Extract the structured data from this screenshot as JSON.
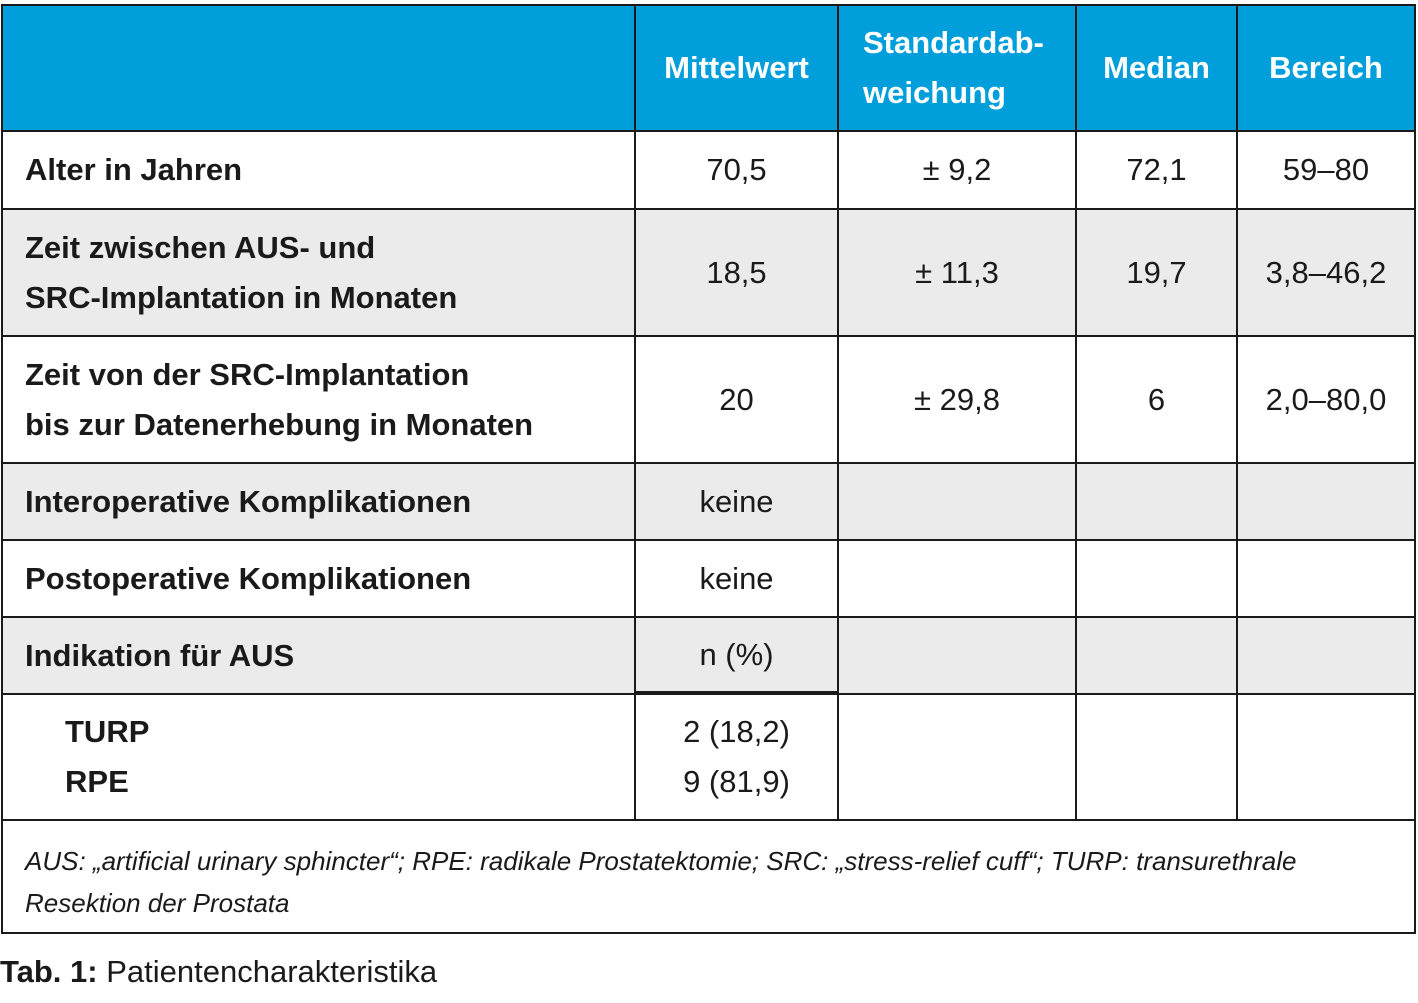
{
  "table": {
    "headers": [
      "",
      "Mittelwert",
      "Standardab-",
      "weichung",
      "Median",
      "Bereich"
    ],
    "header": {
      "col_mean": "Mittelwert",
      "col_sd_line1": "Standardab-",
      "col_sd_line2": "weichung",
      "col_median": "Median",
      "col_range": "Bereich"
    },
    "rows": [
      {
        "label_line1": "Alter in Jahren",
        "mean": "70,5",
        "sd": "± 9,2",
        "median": "72,1",
        "range": "59–80"
      },
      {
        "label_line1": "Zeit zwischen AUS- und",
        "label_line2": "SRC-Implantation in Monaten",
        "mean": "18,5",
        "sd": "± 11,3",
        "median": "19,7",
        "range": "3,8–46,2"
      },
      {
        "label_line1": "Zeit von der SRC-Implantation",
        "label_line2": "bis zur Datenerhebung in Monaten",
        "mean": "20",
        "sd": "± 29,8",
        "median": "6",
        "range": "2,0–80,0"
      },
      {
        "label_line1": "Interoperative Komplikationen",
        "mean": "keine"
      },
      {
        "label_line1": "Postoperative Komplikationen",
        "mean": "keine"
      },
      {
        "label_line1": "Indikation für AUS",
        "mean": "n (%)"
      }
    ],
    "indications": [
      {
        "label": "TURP",
        "value": "2 (18,2)"
      },
      {
        "label": "RPE",
        "value": "9 (81,9)"
      }
    ]
  },
  "footnote": {
    "line1": "AUS: „artificial urinary sphincter“; RPE: radikale Prostatektomie; SRC: „stress-relief cuff“; TURP: transurethrale",
    "line2": "Resektion der Prostata"
  },
  "caption": {
    "label": "Tab. 1:",
    "text": " Patientencharakteristika"
  },
  "colors": {
    "header_bg": "#009fdc",
    "row_shade": "#ebebeb",
    "rule": "#1a1a1a"
  }
}
